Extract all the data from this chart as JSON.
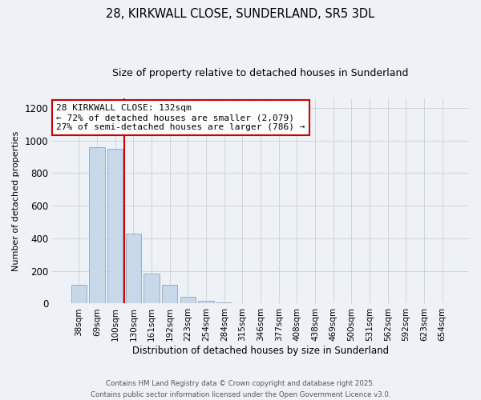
{
  "title_line1": "28, KIRKWALL CLOSE, SUNDERLAND, SR5 3DL",
  "title_line2": "Size of property relative to detached houses in Sunderland",
  "xlabel": "Distribution of detached houses by size in Sunderland",
  "ylabel": "Number of detached properties",
  "annotation_line1": "28 KIRKWALL CLOSE: 132sqm",
  "annotation_line2": "← 72% of detached houses are smaller (2,079)",
  "annotation_line3": "27% of semi-detached houses are larger (786) →",
  "categories": [
    "38sqm",
    "69sqm",
    "100sqm",
    "130sqm",
    "161sqm",
    "192sqm",
    "223sqm",
    "254sqm",
    "284sqm",
    "315sqm",
    "346sqm",
    "377sqm",
    "408sqm",
    "438sqm",
    "469sqm",
    "500sqm",
    "531sqm",
    "562sqm",
    "592sqm",
    "623sqm",
    "654sqm"
  ],
  "values": [
    113,
    960,
    950,
    430,
    185,
    115,
    40,
    18,
    8,
    3,
    1,
    0,
    0,
    0,
    0,
    0,
    0,
    0,
    0,
    0,
    3
  ],
  "bar_color": "#c8d8e8",
  "bar_edge_color": "#8098b8",
  "vline_color": "#cc0000",
  "vline_x": 2.5,
  "ylim": [
    0,
    1260
  ],
  "yticks": [
    0,
    200,
    400,
    600,
    800,
    1000,
    1200
  ],
  "annotation_box_facecolor": "#ffffff",
  "annotation_box_edgecolor": "#cc0000",
  "bg_color": "#eef2f6",
  "grid_color": "#c8d0d8",
  "footer_line1": "Contains HM Land Registry data © Crown copyright and database right 2025.",
  "footer_line2": "Contains public sector information licensed under the Open Government Licence v3.0."
}
